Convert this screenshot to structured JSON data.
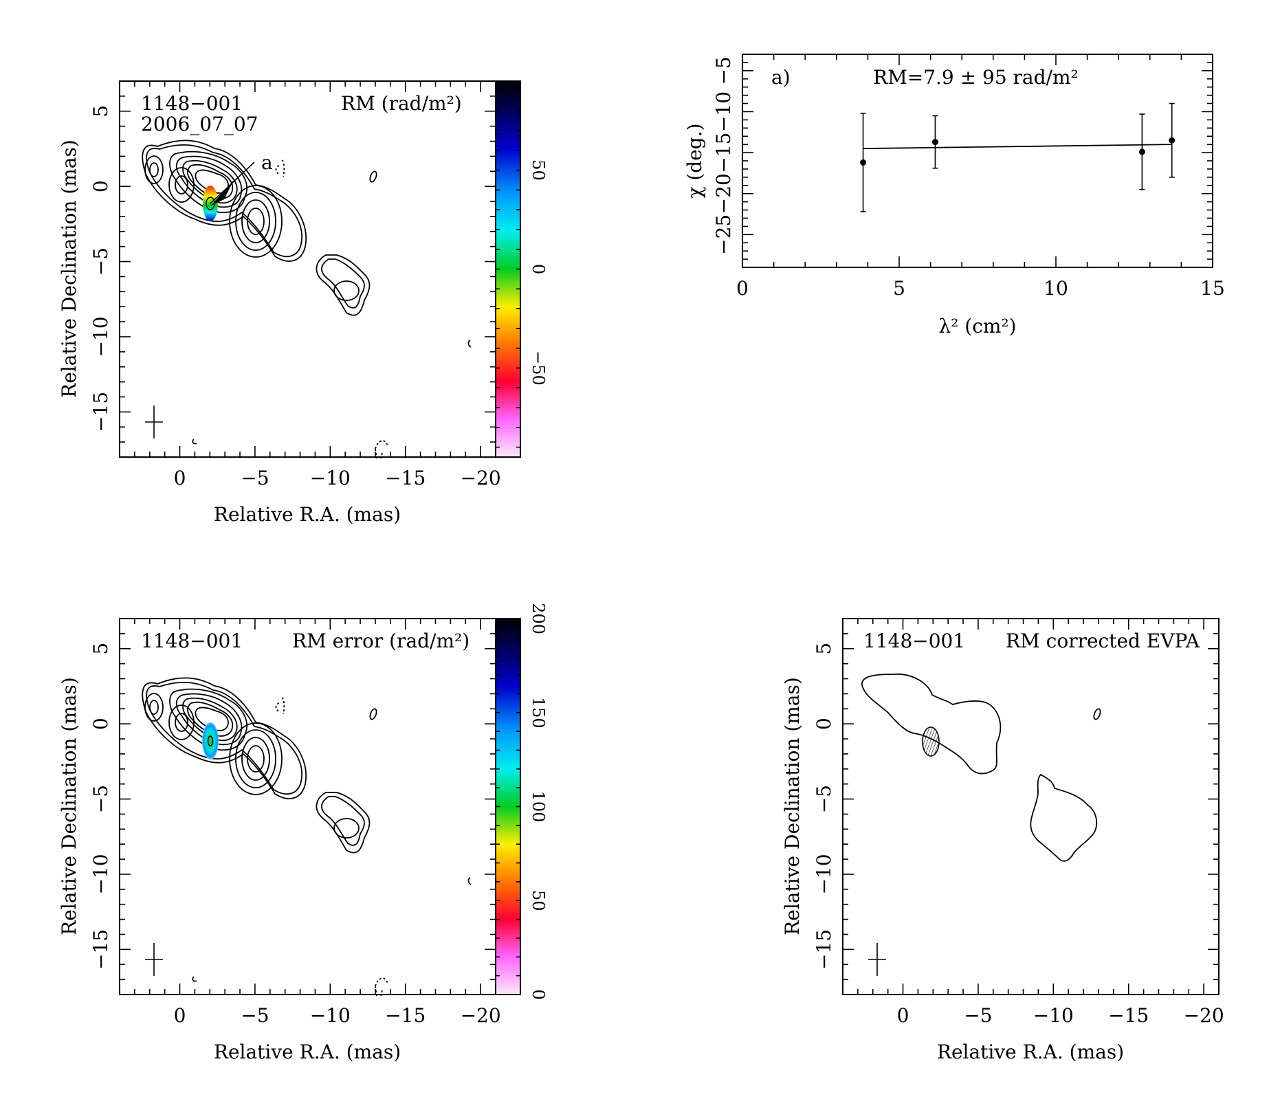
{
  "chart_data": [
    {
      "type": "heatmap",
      "panel": "rm-map",
      "source_label": "1148−001",
      "epoch_label": "2006_07_07",
      "title": "RM (rad/m²)",
      "xlabel": "Relative R.A. (mas)",
      "ylabel": "Relative Declination (mas)",
      "xlim": [
        4,
        -21
      ],
      "ylim": [
        -18,
        7
      ],
      "xticks": [
        0,
        -5,
        -10,
        -15,
        -20
      ],
      "xtick_labels": [
        "0",
        "−5",
        "−10",
        "−15",
        "−20"
      ],
      "yticks": [
        5,
        0,
        -5,
        -10,
        -15
      ],
      "ytick_labels": [
        "5",
        "0",
        "−5",
        "−10",
        "−15"
      ],
      "colorbar": {
        "range": [
          -95,
          95
        ],
        "ticks": [
          50,
          0,
          -50
        ],
        "tick_labels": [
          "50",
          "0",
          "−50"
        ]
      },
      "annotation": "a",
      "color_region_center": [
        -2,
        -1.3
      ]
    },
    {
      "type": "scatter",
      "panel": "rm-fit",
      "panel_label": "a)",
      "title": "RM=7.9 ± 95 rad/m²",
      "xlabel": "λ² (cm²)",
      "ylabel": "χ (deg.)",
      "xlim": [
        0,
        15
      ],
      "ylim": [
        -29,
        -3
      ],
      "xticks": [
        0,
        5,
        10,
        15
      ],
      "xtick_labels": [
        "0",
        "5",
        "10",
        "15"
      ],
      "yticks": [
        -5,
        -10,
        -15,
        -20,
        -25
      ],
      "ytick_labels": [
        "−5",
        "−10",
        "−15",
        "−20",
        "−25"
      ],
      "points": [
        {
          "x": 3.85,
          "y": -16.2,
          "err": 6.0
        },
        {
          "x": 6.15,
          "y": -13.7,
          "err": 3.2
        },
        {
          "x": 12.75,
          "y": -14.9,
          "err": 4.6
        },
        {
          "x": 13.7,
          "y": -13.5,
          "err": 4.5
        }
      ],
      "fit_line": {
        "x": [
          3.85,
          13.7
        ],
        "y": [
          -14.5,
          -14.0
        ]
      }
    },
    {
      "type": "heatmap",
      "panel": "rm-error-map",
      "source_label": "1148−001",
      "title": "RM error (rad/m²)",
      "xlabel": "Relative R.A. (mas)",
      "ylabel": "Relative Declination (mas)",
      "xlim": [
        4,
        -21
      ],
      "ylim": [
        -18,
        7
      ],
      "xticks": [
        0,
        -5,
        -10,
        -15,
        -20
      ],
      "xtick_labels": [
        "0",
        "−5",
        "−10",
        "−15",
        "−20"
      ],
      "yticks": [
        5,
        0,
        -5,
        -10,
        -15
      ],
      "ytick_labels": [
        "5",
        "0",
        "−5",
        "−10",
        "−15"
      ],
      "colorbar": {
        "range": [
          0,
          200
        ],
        "ticks": [
          200,
          150,
          100,
          50,
          0
        ],
        "tick_labels": [
          "200",
          "150",
          "100",
          "50",
          "0"
        ]
      },
      "color_region_center": [
        -2,
        -1.3
      ]
    },
    {
      "type": "contour",
      "panel": "evpa-map",
      "source_label": "1148−001",
      "title": "RM corrected EVPA",
      "xlabel": "Relative R.A. (mas)",
      "ylabel": "Relative Declination (mas)",
      "xlim": [
        4,
        -21
      ],
      "ylim": [
        -18,
        7
      ],
      "xticks": [
        0,
        -5,
        -10,
        -15,
        -20
      ],
      "xtick_labels": [
        "0",
        "−5",
        "−10",
        "−15",
        "−20"
      ],
      "yticks": [
        5,
        0,
        -5,
        -10,
        -15
      ],
      "ytick_labels": [
        "5",
        "0",
        "−5",
        "−10",
        "−15"
      ]
    }
  ]
}
